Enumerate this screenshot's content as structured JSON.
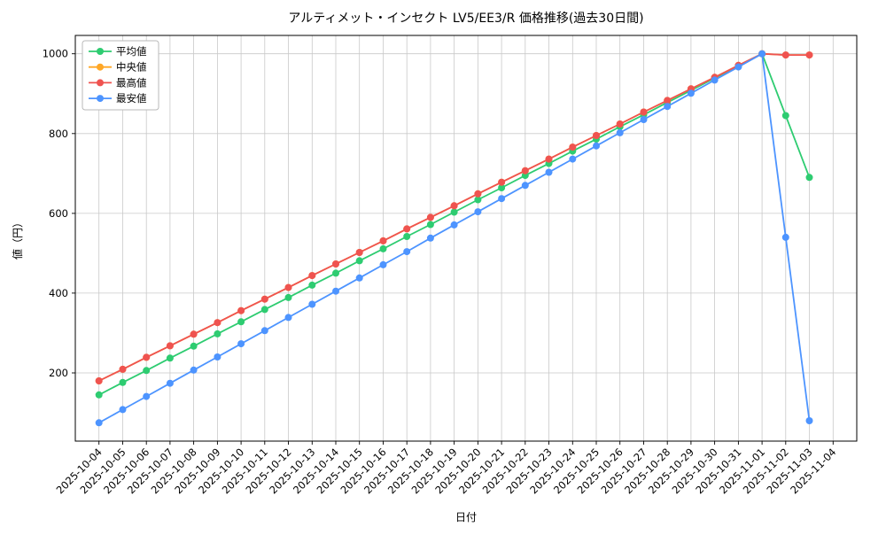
{
  "figure": {
    "title": "アルティメット・インセクト LV5/EE3/R 価格推移(過去30日間)",
    "xlabel": "日付",
    "ylabel": "値（円）"
  },
  "legend": {
    "items": [
      "平均値",
      "中央値",
      "最高値",
      "最安値"
    ],
    "position": "upper left"
  },
  "chart_data": {
    "type": "line",
    "title": "アルティメット・インセクト LV5/EE3/R 価格推移(過去30日間)",
    "xlabel": "日付",
    "ylabel": "値（円）",
    "grid": true,
    "legend_position": "upper left",
    "ylim": [
      29,
      1046
    ],
    "yticks": [
      200,
      400,
      600,
      800,
      1000
    ],
    "categories": [
      "2025-10-04",
      "2025-10-05",
      "2025-10-06",
      "2025-10-07",
      "2025-10-08",
      "2025-10-09",
      "2025-10-10",
      "2025-10-11",
      "2025-10-12",
      "2025-10-13",
      "2025-10-14",
      "2025-10-15",
      "2025-10-16",
      "2025-10-17",
      "2025-10-18",
      "2025-10-19",
      "2025-10-20",
      "2025-10-21",
      "2025-10-22",
      "2025-10-23",
      "2025-10-24",
      "2025-10-25",
      "2025-10-26",
      "2025-10-27",
      "2025-10-28",
      "2025-10-29",
      "2025-10-30",
      "2025-10-31",
      "2025-11-01",
      "2025-11-02",
      "2025-11-03",
      "2025-11-04"
    ],
    "series": [
      {
        "name": "平均値",
        "key": "average",
        "color": "#2ecc71",
        "values": [
          145,
          176,
          206,
          237,
          267,
          298,
          328,
          359,
          389,
          420,
          450,
          481,
          511,
          542,
          572,
          603,
          634,
          664,
          695,
          725,
          756,
          786,
          817,
          847,
          878,
          908,
          939,
          969,
          1000,
          845,
          690,
          null
        ]
      },
      {
        "name": "中央値",
        "key": "median",
        "color": "#ffa726",
        "values": [
          180,
          209,
          239,
          268,
          297,
          326,
          356,
          385,
          414,
          444,
          473,
          502,
          531,
          561,
          590,
          619,
          649,
          678,
          707,
          736,
          766,
          795,
          824,
          854,
          883,
          912,
          941,
          971,
          1000,
          997,
          997,
          null
        ]
      },
      {
        "name": "最高値",
        "key": "max",
        "color": "#ef5350",
        "values": [
          180,
          209,
          239,
          268,
          297,
          326,
          356,
          385,
          414,
          444,
          473,
          502,
          531,
          561,
          590,
          619,
          649,
          678,
          707,
          736,
          766,
          795,
          824,
          854,
          883,
          912,
          941,
          971,
          1000,
          997,
          997,
          null
        ]
      },
      {
        "name": "最安値",
        "key": "min",
        "color": "#4d94ff",
        "values": [
          75,
          108,
          141,
          174,
          207,
          240,
          273,
          306,
          339,
          372,
          405,
          438,
          471,
          504,
          538,
          571,
          604,
          637,
          670,
          703,
          736,
          769,
          802,
          835,
          868,
          901,
          934,
          967,
          1000,
          540,
          80,
          null
        ]
      }
    ]
  }
}
